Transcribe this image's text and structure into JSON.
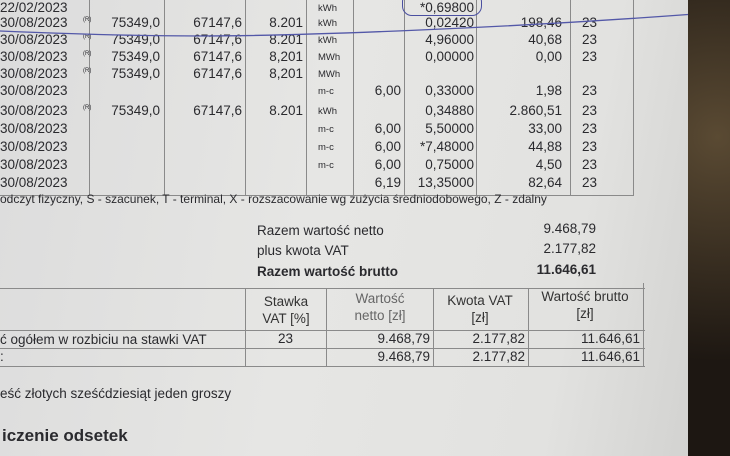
{
  "readings": [
    {
      "date": "22/02/2023",
      "flag": "",
      "meter_a": "",
      "meter_b": "",
      "factor": "",
      "unit": "kWh",
      "qty": "",
      "price": "*0,69800",
      "value": "",
      "vat": ""
    },
    {
      "date": "30/08/2023",
      "flag": "(R)",
      "meter_a": "75349,0",
      "meter_b": "67147,6",
      "factor": "8.201",
      "unit": "kWh",
      "qty": "",
      "price": "0,02420",
      "value": "198,46",
      "vat": "23"
    },
    {
      "date": "30/08/2023",
      "flag": "(R)",
      "meter_a": "75349,0",
      "meter_b": "67147,6",
      "factor": "8.201",
      "unit": "kWh",
      "qty": "",
      "price": "4,96000",
      "value": "40,68",
      "vat": "23"
    },
    {
      "date": "30/08/2023",
      "flag": "(R)",
      "meter_a": "75349,0",
      "meter_b": "67147,6",
      "factor": "8,201",
      "unit": "MWh",
      "qty": "",
      "price": "0,00000",
      "value": "0,00",
      "vat": "23"
    },
    {
      "date": "30/08/2023",
      "flag": "(R)",
      "meter_a": "75349,0",
      "meter_b": "67147,6",
      "factor": "8,201",
      "unit": "MWh",
      "qty": "",
      "price": "",
      "value": "",
      "vat": ""
    },
    {
      "date": "30/08/2023",
      "flag": "",
      "meter_a": "",
      "meter_b": "",
      "factor": "",
      "unit": "m-c",
      "qty": "6,00",
      "price": "0,33000",
      "value": "1,98",
      "vat": "23"
    },
    {
      "date": "30/08/2023",
      "flag": "(R)",
      "meter_a": "75349,0",
      "meter_b": "67147,6",
      "factor": "8.201",
      "unit": "kWh",
      "qty": "",
      "price": "0,34880",
      "value": "2.860,51",
      "vat": "23"
    },
    {
      "date": "30/08/2023",
      "flag": "",
      "meter_a": "",
      "meter_b": "",
      "factor": "",
      "unit": "m-c",
      "qty": "6,00",
      "price": "5,50000",
      "value": "33,00",
      "vat": "23"
    },
    {
      "date": "30/08/2023",
      "flag": "",
      "meter_a": "",
      "meter_b": "",
      "factor": "",
      "unit": "m-c",
      "qty": "6,00",
      "price": "*7,48000",
      "value": "44,88",
      "vat": "23"
    },
    {
      "date": "30/08/2023",
      "flag": "",
      "meter_a": "",
      "meter_b": "",
      "factor": "",
      "unit": "m-c",
      "qty": "6,00",
      "price": "0,75000",
      "value": "4,50",
      "vat": "23"
    },
    {
      "date": "30/08/2023",
      "flag": "",
      "meter_a": "",
      "meter_b": "",
      "factor": "",
      "unit": "",
      "qty": "6,19",
      "price": "13,35000",
      "value": "82,64",
      "vat": "23"
    }
  ],
  "legend": "odczyt fizyczny, S - szacunek, T - terminal, X - rozszacowanie wg zużycia średniodobowego, Z - zdalny",
  "totals": [
    {
      "label": "Razem wartość netto",
      "value": "9.468,79"
    },
    {
      "label": "plus kwota VAT",
      "value": "2.177,82"
    },
    {
      "label": "Razem wartość brutto",
      "value": "11.646,61"
    }
  ],
  "vat_table": {
    "headers": [
      "Stawka VAT [%]",
      "Wartość netto [zł]",
      "Kwota VAT [zł]",
      "Wartość brutto [zł]"
    ],
    "rows": [
      {
        "label": "ć ogółem w rozbiciu na stawki VAT",
        "rate": "23",
        "net": "9.468,79",
        "vat": "2.177,82",
        "gross": "11.646,61"
      },
      {
        "label": ":",
        "rate": "",
        "net": "9.468,79",
        "vat": "2.177,82",
        "gross": "11.646,61"
      }
    ]
  },
  "amount_words": "eść złotych sześćdziesiąt jeden groszy",
  "section_heading": "iczenie odsetek",
  "colors": {
    "paper": "#e4e4e2",
    "ink": "#2a2a2e",
    "pen": "#4a4fa0"
  }
}
